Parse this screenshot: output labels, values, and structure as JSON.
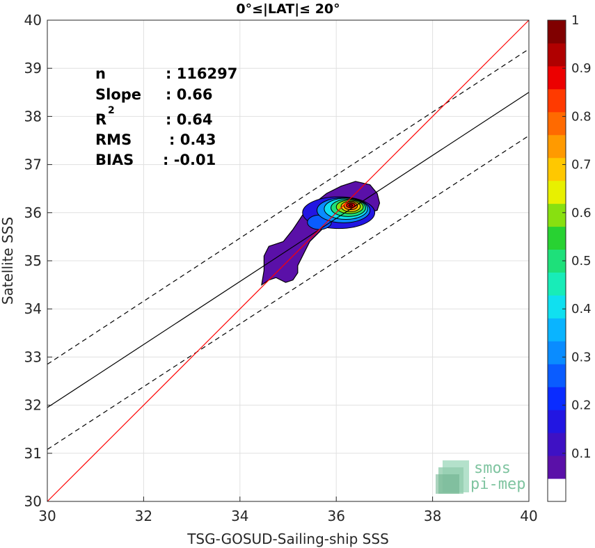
{
  "chart_data": {
    "type": "scatter",
    "title": "0°≤|LAT|≤ 20°",
    "xlabel": "TSG-GOSUD-Sailing-ship SSS",
    "ylabel": "Satellite SSS",
    "xlim": [
      30,
      40
    ],
    "ylim": [
      30,
      40
    ],
    "xticks": [
      "30",
      "32",
      "34",
      "36",
      "38",
      "40"
    ],
    "yticks": [
      "30",
      "31",
      "32",
      "33",
      "34",
      "35",
      "36",
      "37",
      "38",
      "39",
      "40"
    ],
    "grid": true,
    "stats": [
      {
        "label": "n",
        "value": ": 116297"
      },
      {
        "label": "Slope",
        "value": ": 0.66"
      },
      {
        "label": "R",
        "sup": "2",
        "value": ": 0.64"
      },
      {
        "label": "RMS",
        "value": ": 0.43"
      },
      {
        "label": "BIAS",
        "value": ": -0.01"
      }
    ],
    "lines": {
      "identity": {
        "color": "#ff0000",
        "x": [
          30,
          40
        ],
        "y": [
          30,
          40
        ]
      },
      "fit": {
        "color": "#000000",
        "style": "solid",
        "x": [
          30,
          40
        ],
        "y": [
          31.95,
          38.5
        ]
      },
      "fit_upper": {
        "color": "#000000",
        "style": "dashed",
        "x": [
          30,
          40
        ],
        "y": [
          32.85,
          39.4
        ]
      },
      "fit_lower": {
        "color": "#000000",
        "style": "dashed",
        "x": [
          30,
          40
        ],
        "y": [
          31.08,
          37.6
        ]
      }
    },
    "density_contours": {
      "levels": [
        0.05,
        0.1,
        0.2,
        0.3,
        0.4,
        0.5,
        0.6,
        0.7,
        0.8,
        0.9,
        1.0
      ],
      "peak": {
        "x": 36.3,
        "y": 36.15
      },
      "outer_polygon": [
        [
          34.45,
          34.5
        ],
        [
          34.6,
          34.6
        ],
        [
          34.75,
          34.65
        ],
        [
          34.95,
          34.55
        ],
        [
          35.1,
          34.6
        ],
        [
          35.2,
          34.75
        ],
        [
          35.2,
          34.9
        ],
        [
          35.35,
          35.2
        ],
        [
          35.45,
          35.4
        ],
        [
          35.6,
          35.55
        ],
        [
          35.8,
          35.75
        ],
        [
          36.1,
          35.85
        ],
        [
          36.5,
          35.95
        ],
        [
          36.85,
          36.05
        ],
        [
          36.9,
          36.2
        ],
        [
          36.85,
          36.4
        ],
        [
          36.7,
          36.58
        ],
        [
          36.4,
          36.65
        ],
        [
          36.1,
          36.55
        ],
        [
          35.8,
          36.4
        ],
        [
          35.55,
          36.2
        ],
        [
          35.3,
          35.95
        ],
        [
          35.1,
          35.65
        ],
        [
          34.9,
          35.4
        ],
        [
          34.6,
          35.3
        ],
        [
          34.5,
          35.1
        ],
        [
          34.5,
          34.8
        ]
      ],
      "inner": [
        {
          "level": 0.15,
          "cx": 36.05,
          "cy": 36.0,
          "rx": 0.75,
          "ry": 0.33
        },
        {
          "level": 0.25,
          "cx": 35.65,
          "cy": 35.8,
          "rx": 0.25,
          "ry": 0.15
        },
        {
          "level": 0.3,
          "cx": 36.15,
          "cy": 36.05,
          "rx": 0.55,
          "ry": 0.26
        },
        {
          "level": 0.4,
          "cx": 36.2,
          "cy": 36.08,
          "rx": 0.45,
          "ry": 0.22
        },
        {
          "level": 0.5,
          "cx": 36.25,
          "cy": 36.1,
          "rx": 0.36,
          "ry": 0.18
        },
        {
          "level": 0.6,
          "cx": 36.28,
          "cy": 36.12,
          "rx": 0.28,
          "ry": 0.14
        },
        {
          "level": 0.7,
          "cx": 36.3,
          "cy": 36.13,
          "rx": 0.2,
          "ry": 0.11
        },
        {
          "level": 0.8,
          "cx": 36.3,
          "cy": 36.14,
          "rx": 0.14,
          "ry": 0.08
        },
        {
          "level": 0.9,
          "cx": 36.3,
          "cy": 36.15,
          "rx": 0.09,
          "ry": 0.05
        },
        {
          "level": 1.0,
          "cx": 36.3,
          "cy": 36.15,
          "rx": 0.04,
          "ry": 0.025
        }
      ]
    },
    "colorbar": {
      "ticks": [
        "0.1",
        "0.2",
        "0.3",
        "0.4",
        "0.5",
        "0.6",
        "0.7",
        "0.8",
        "0.9",
        "1"
      ],
      "colors": [
        "#ffffff",
        "#5a10a8",
        "#3e11c4",
        "#2216e2",
        "#0a2cff",
        "#0a5cff",
        "#0a8cff",
        "#0ab4ff",
        "#10e0f0",
        "#18ecb8",
        "#1ee07a",
        "#28d232",
        "#88e010",
        "#e8f000",
        "#ffc800",
        "#ff9a00",
        "#ff6a00",
        "#ff3a00",
        "#ec0000",
        "#b00000",
        "#800000"
      ]
    },
    "logo": {
      "line1": "smos",
      "line2": "pi-mep"
    }
  }
}
